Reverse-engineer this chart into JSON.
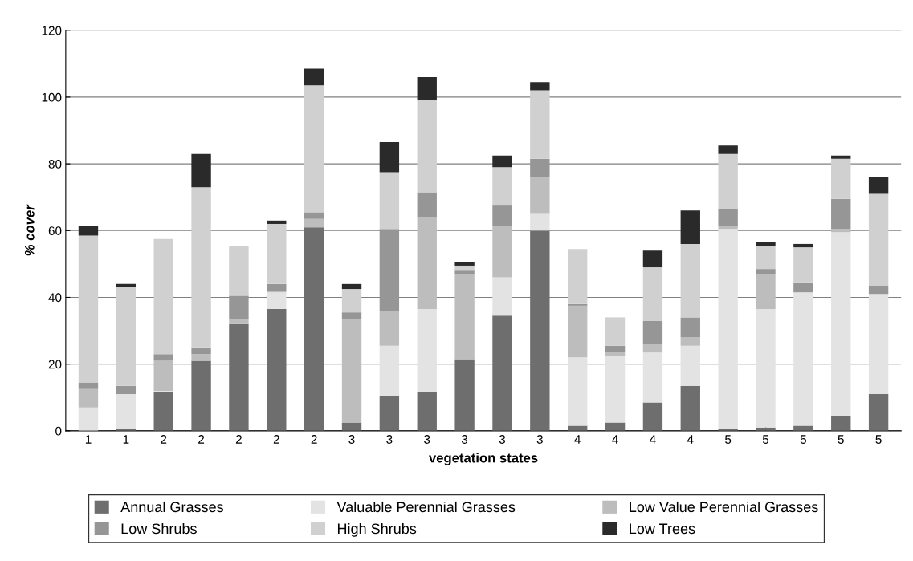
{
  "chart_data": {
    "type": "bar",
    "stacked": true,
    "xlabel": "vegetation states",
    "ylabel": "% cover",
    "categories": [
      "1",
      "1",
      "2",
      "2",
      "2",
      "2",
      "2",
      "3",
      "3",
      "3",
      "3",
      "3",
      "3",
      "4",
      "4",
      "4",
      "4",
      "5",
      "5",
      "5",
      "5",
      "5"
    ],
    "ylim": [
      0,
      120
    ],
    "yticks": [
      0,
      20,
      40,
      60,
      80,
      100,
      120
    ],
    "grid": "y",
    "legend": "bottom",
    "series": [
      {
        "name": "Annual Grasses",
        "color": "#6e6e6e",
        "values": [
          0,
          0.5,
          11.5,
          21,
          32,
          36.5,
          61,
          2.5,
          10.5,
          11.5,
          21.5,
          34.5,
          60,
          1.5,
          2.5,
          8.5,
          13.5,
          0.5,
          1,
          1.5,
          4.5,
          11
        ]
      },
      {
        "name": "Valuable Perennial Grasses",
        "color": "#e3e3e3",
        "values": [
          7,
          10.5,
          0.5,
          0,
          0,
          5,
          0,
          0,
          15,
          25,
          0,
          11.5,
          5,
          20.5,
          20,
          15,
          12,
          60,
          35.5,
          40,
          55,
          30
        ]
      },
      {
        "name": "Low Value Perennial Grasses",
        "color": "#bdbdbd",
        "values": [
          5.5,
          0,
          9,
          2,
          1.5,
          0.5,
          2.5,
          31,
          10.5,
          27.5,
          25.5,
          15.5,
          11,
          15.5,
          1,
          2.5,
          2.5,
          1,
          10.5,
          0,
          1,
          0
        ]
      },
      {
        "name": "Low Shrubs",
        "color": "#969696",
        "values": [
          2,
          2.5,
          2,
          2,
          7,
          2,
          2,
          2,
          24.5,
          7.5,
          1,
          6,
          5.5,
          0.5,
          2,
          7,
          6,
          5,
          1.5,
          3,
          9,
          2.5
        ]
      },
      {
        "name": "High Shrubs",
        "color": "#d0d0d0",
        "values": [
          44,
          29.5,
          34.5,
          48,
          15,
          18,
          38,
          7,
          17,
          27.5,
          1.5,
          11.5,
          20.5,
          16.5,
          8.5,
          16,
          22,
          16.5,
          7,
          10.5,
          12,
          27.5
        ]
      },
      {
        "name": "Low Trees",
        "color": "#2a2a2a",
        "values": [
          3,
          1,
          0,
          10,
          0,
          1,
          5,
          1.5,
          9,
          7,
          1,
          3.5,
          2.5,
          0,
          0,
          5,
          10,
          2.5,
          1,
          1,
          1,
          5
        ]
      }
    ]
  }
}
